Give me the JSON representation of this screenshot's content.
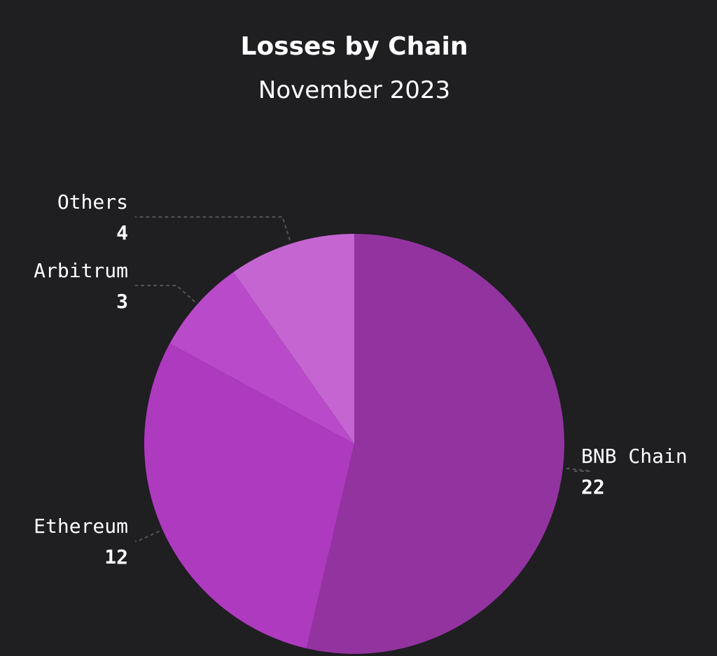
{
  "chart_data": {
    "type": "pie",
    "title": "Losses by Chain",
    "subtitle": "November 2023",
    "categories": [
      "BNB Chain",
      "Ethereum",
      "Arbitrum",
      "Others"
    ],
    "values": [
      22,
      12,
      3,
      4
    ],
    "colors": [
      "#9333a0",
      "#ae3abf",
      "#b94ac9",
      "#c565d2"
    ]
  }
}
